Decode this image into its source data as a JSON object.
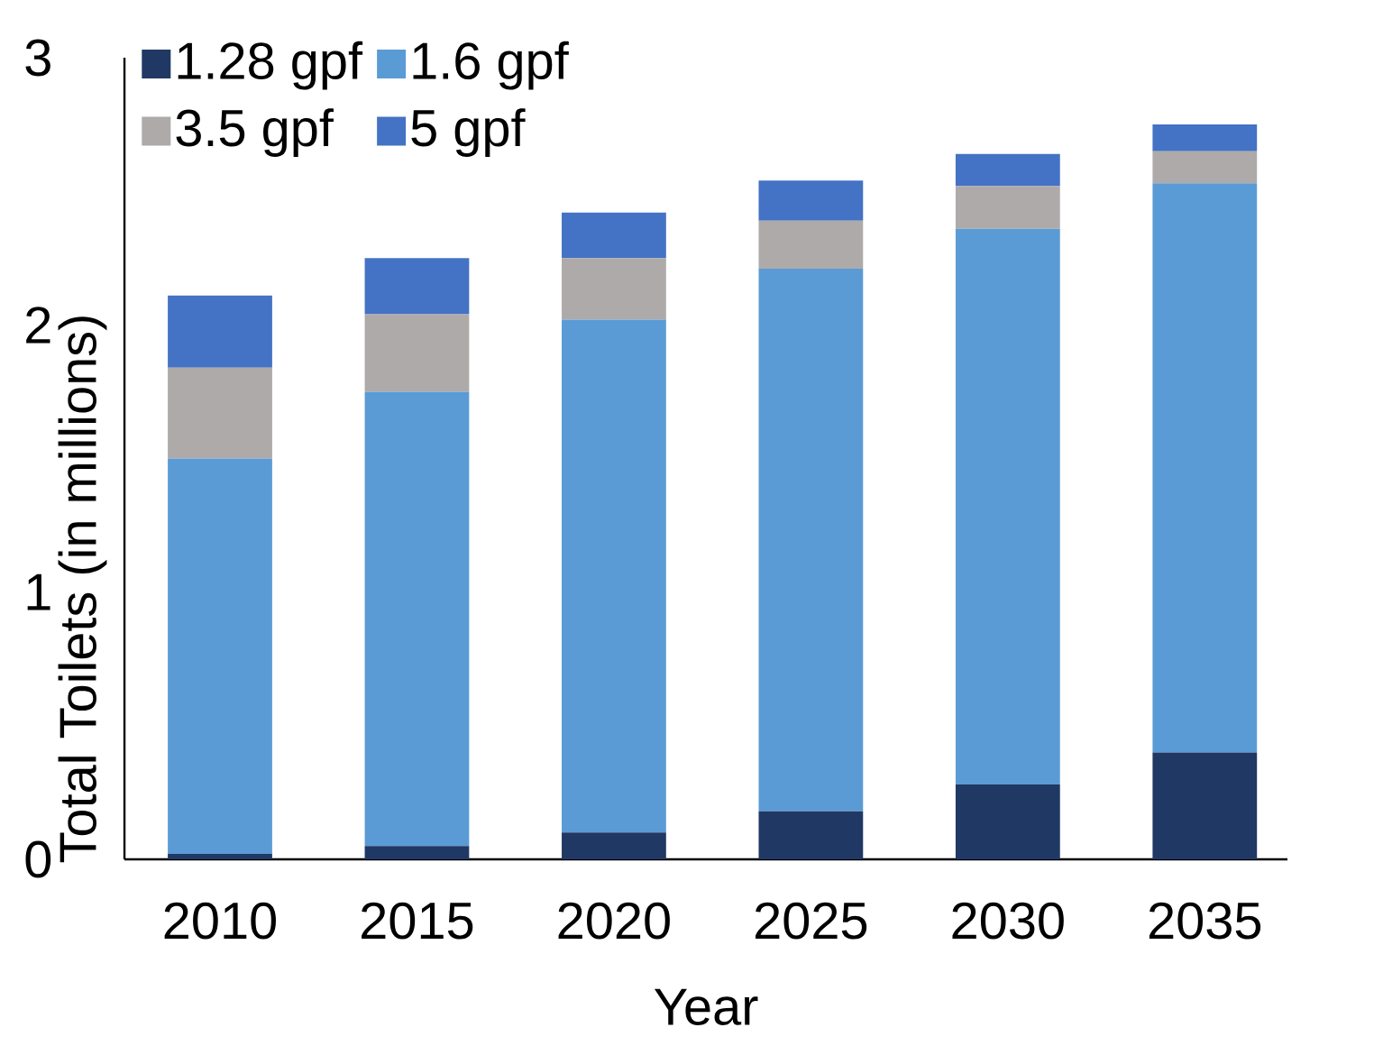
{
  "chart_data": {
    "type": "bar",
    "stacked": true,
    "xlabel": "Year",
    "ylabel": "Total Toilets (in millions)",
    "categories": [
      "2010",
      "2015",
      "2020",
      "2025",
      "2030",
      "2035"
    ],
    "series": [
      {
        "name": "1.28 gpf",
        "color": "#203864",
        "values": [
          0.02,
          0.05,
          0.1,
          0.18,
          0.28,
          0.4
        ]
      },
      {
        "name": "1.6 gpf",
        "color": "#5b9bd5",
        "values": [
          1.48,
          1.7,
          1.92,
          2.03,
          2.08,
          2.13
        ]
      },
      {
        "name": "3.5 gpf",
        "color": "#aeaaaa",
        "values": [
          0.34,
          0.29,
          0.23,
          0.18,
          0.16,
          0.12
        ]
      },
      {
        "name": "5 gpf",
        "color": "#4472c4",
        "values": [
          0.27,
          0.21,
          0.17,
          0.15,
          0.12,
          0.1
        ]
      }
    ],
    "ylim": [
      0,
      3
    ],
    "yticks": [
      0,
      1,
      2,
      3
    ],
    "legend": "top left",
    "grid": false
  }
}
